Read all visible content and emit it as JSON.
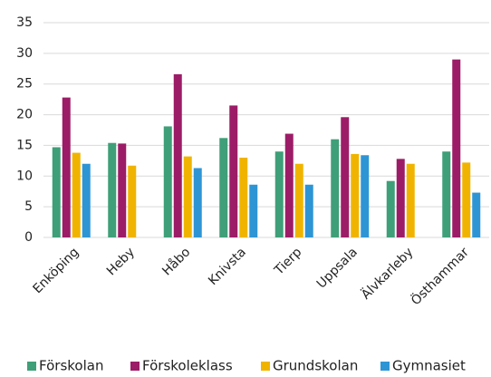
{
  "chart_data": {
    "type": "bar",
    "categories": [
      "Enköping",
      "Heby",
      "Håbo",
      "Knivsta",
      "Tierp",
      "Uppsala",
      "Älvkarleby",
      "Östhammar"
    ],
    "series": [
      {
        "name": "Förskolan",
        "color": "#3f9f78",
        "values": [
          14.7,
          15.4,
          18.1,
          16.2,
          14.0,
          16.0,
          9.2,
          14.0
        ]
      },
      {
        "name": "Förskoleklass",
        "color": "#9c1c67",
        "values": [
          22.8,
          15.3,
          26.6,
          21.5,
          16.9,
          19.6,
          12.8,
          29.0
        ]
      },
      {
        "name": "Grundskolan",
        "color": "#f0b400",
        "values": [
          13.8,
          11.7,
          13.2,
          13.0,
          12.0,
          13.6,
          12.0,
          12.2
        ]
      },
      {
        "name": "Gymnasiet",
        "color": "#2e95d5",
        "values": [
          12.0,
          null,
          11.3,
          8.6,
          8.6,
          13.4,
          null,
          7.3
        ]
      }
    ],
    "ylim": [
      0,
      35
    ],
    "yticks": [
      0,
      5,
      10,
      15,
      20,
      25,
      30,
      35
    ],
    "grid": true,
    "legend": "bottom"
  }
}
